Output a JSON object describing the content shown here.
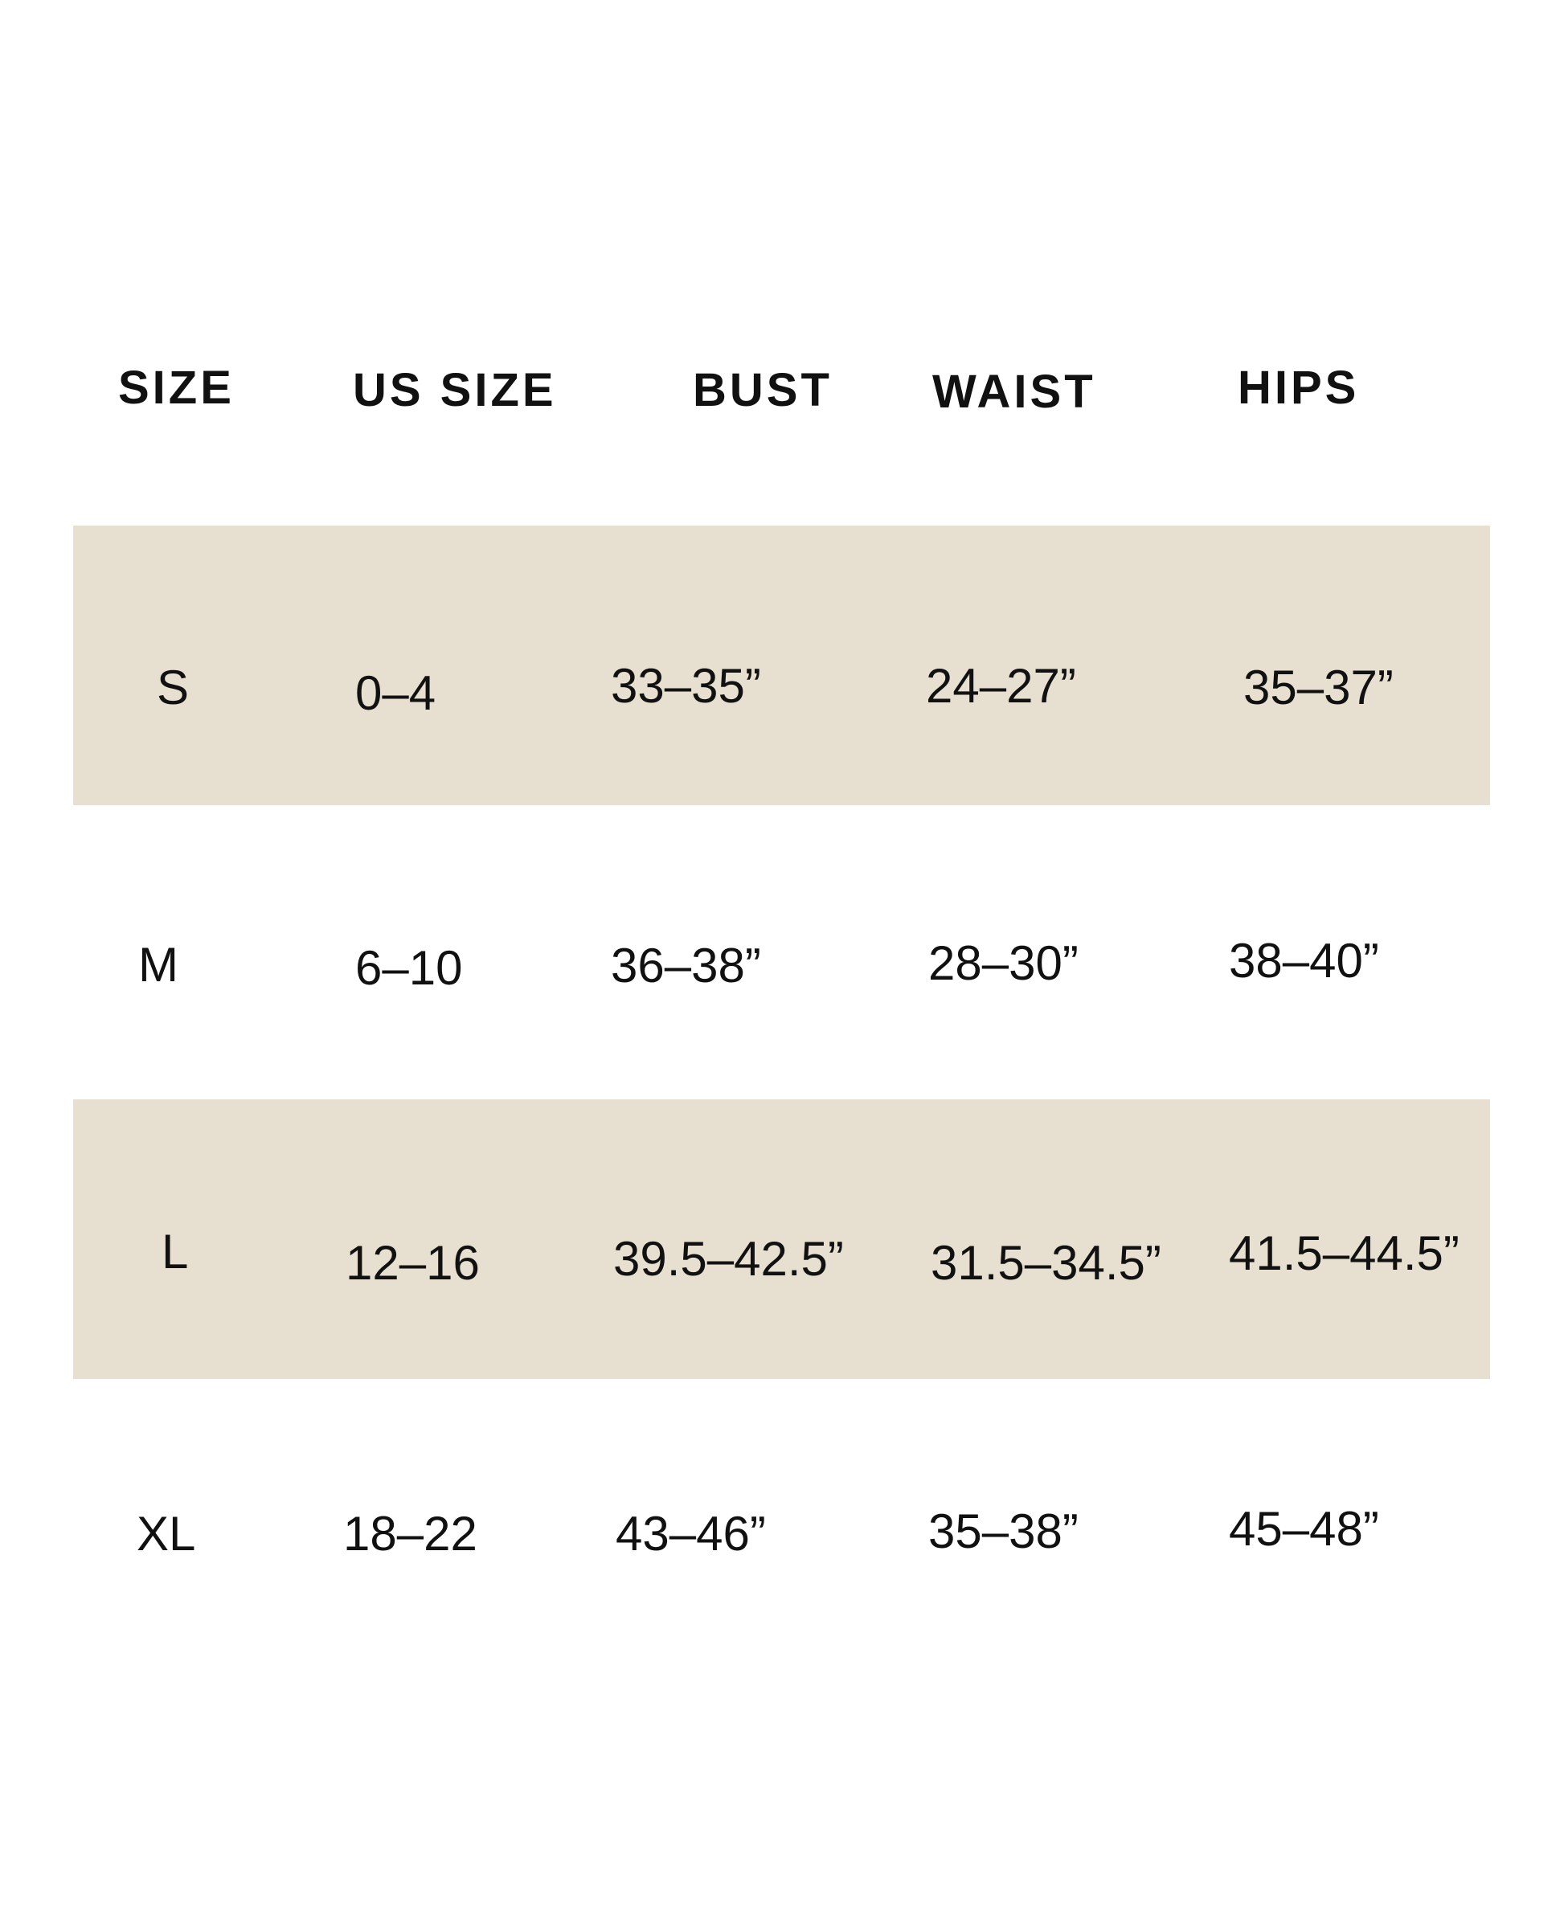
{
  "colors": {
    "band": "#e7e0d0",
    "text": "#111111"
  },
  "headers": [
    "SIZE",
    "US SIZE",
    "BUST",
    "WAIST",
    "HIPS"
  ],
  "rows": [
    [
      "S",
      "0–4",
      "33–35”",
      "24–27”",
      "35–37”"
    ],
    [
      "M",
      "6–10",
      "36–38”",
      "28–30”",
      "38–40”"
    ],
    [
      "L",
      "12–16",
      "39.5–42.5”",
      "31.5–34.5”",
      "41.5–44.5”"
    ],
    [
      "XL",
      "18–22",
      "43–46”",
      "35–38”",
      "45–48”"
    ]
  ]
}
